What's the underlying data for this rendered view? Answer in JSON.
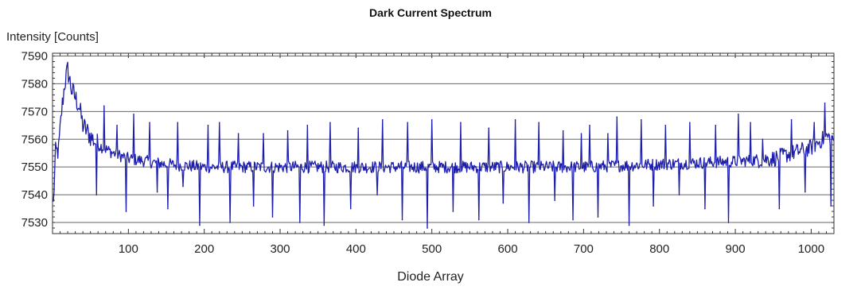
{
  "chart_data": {
    "type": "line",
    "title": "Dark Current Spectrum",
    "ylabel": "Intensity [Counts]",
    "xlabel": "Diode Array",
    "xlim": [
      0,
      1030
    ],
    "ylim": [
      7526,
      7591
    ],
    "x_ticks": [
      100,
      200,
      300,
      400,
      500,
      600,
      700,
      800,
      900,
      1000
    ],
    "y_ticks": [
      7530,
      7540,
      7550,
      7560,
      7570,
      7580,
      7590
    ],
    "grid": "horizontal",
    "colors": {
      "line": "#1d1dae",
      "grid": "#666666",
      "axis": "#333333"
    },
    "series": [
      {
        "profile": [
          [
            0,
            7530
          ],
          [
            4,
            7555
          ],
          [
            8,
            7556
          ],
          [
            12,
            7570
          ],
          [
            16,
            7580
          ],
          [
            20,
            7585
          ],
          [
            25,
            7578
          ],
          [
            30,
            7575
          ],
          [
            35,
            7572
          ],
          [
            40,
            7565
          ],
          [
            50,
            7561
          ],
          [
            60,
            7558
          ],
          [
            80,
            7555
          ],
          [
            100,
            7553
          ],
          [
            150,
            7551
          ],
          [
            200,
            7550
          ],
          [
            300,
            7550
          ],
          [
            500,
            7550
          ],
          [
            700,
            7550
          ],
          [
            800,
            7551
          ],
          [
            900,
            7552
          ],
          [
            950,
            7553
          ],
          [
            1000,
            7557
          ],
          [
            1020,
            7561
          ],
          [
            1030,
            7560
          ]
        ],
        "spikes": [
          {
            "x": 58,
            "y": 7540
          },
          {
            "x": 68,
            "y": 7572
          },
          {
            "x": 85,
            "y": 7565
          },
          {
            "x": 97,
            "y": 7534
          },
          {
            "x": 107,
            "y": 7569
          },
          {
            "x": 128,
            "y": 7566
          },
          {
            "x": 138,
            "y": 7541
          },
          {
            "x": 152,
            "y": 7535
          },
          {
            "x": 165,
            "y": 7566
          },
          {
            "x": 172,
            "y": 7543
          },
          {
            "x": 194,
            "y": 7529
          },
          {
            "x": 205,
            "y": 7565
          },
          {
            "x": 220,
            "y": 7566
          },
          {
            "x": 234,
            "y": 7530
          },
          {
            "x": 245,
            "y": 7562
          },
          {
            "x": 265,
            "y": 7536
          },
          {
            "x": 278,
            "y": 7562
          },
          {
            "x": 290,
            "y": 7532
          },
          {
            "x": 310,
            "y": 7563
          },
          {
            "x": 326,
            "y": 7530
          },
          {
            "x": 336,
            "y": 7565
          },
          {
            "x": 358,
            "y": 7529
          },
          {
            "x": 366,
            "y": 7566
          },
          {
            "x": 393,
            "y": 7535
          },
          {
            "x": 403,
            "y": 7564
          },
          {
            "x": 428,
            "y": 7540
          },
          {
            "x": 435,
            "y": 7567
          },
          {
            "x": 461,
            "y": 7531
          },
          {
            "x": 468,
            "y": 7566
          },
          {
            "x": 494,
            "y": 7528
          },
          {
            "x": 500,
            "y": 7567
          },
          {
            "x": 528,
            "y": 7534
          },
          {
            "x": 538,
            "y": 7566
          },
          {
            "x": 562,
            "y": 7531
          },
          {
            "x": 575,
            "y": 7564
          },
          {
            "x": 594,
            "y": 7537
          },
          {
            "x": 610,
            "y": 7567
          },
          {
            "x": 628,
            "y": 7530
          },
          {
            "x": 641,
            "y": 7566
          },
          {
            "x": 662,
            "y": 7538
          },
          {
            "x": 673,
            "y": 7563
          },
          {
            "x": 686,
            "y": 7531
          },
          {
            "x": 697,
            "y": 7562
          },
          {
            "x": 708,
            "y": 7565
          },
          {
            "x": 719,
            "y": 7532
          },
          {
            "x": 732,
            "y": 7562
          },
          {
            "x": 744,
            "y": 7568
          },
          {
            "x": 760,
            "y": 7529
          },
          {
            "x": 776,
            "y": 7567
          },
          {
            "x": 792,
            "y": 7536
          },
          {
            "x": 808,
            "y": 7565
          },
          {
            "x": 826,
            "y": 7540
          },
          {
            "x": 840,
            "y": 7566
          },
          {
            "x": 860,
            "y": 7535
          },
          {
            "x": 874,
            "y": 7565
          },
          {
            "x": 891,
            "y": 7530
          },
          {
            "x": 904,
            "y": 7569
          },
          {
            "x": 920,
            "y": 7566
          },
          {
            "x": 936,
            "y": 7560
          },
          {
            "x": 958,
            "y": 7535
          },
          {
            "x": 974,
            "y": 7567
          },
          {
            "x": 992,
            "y": 7541
          },
          {
            "x": 1004,
            "y": 7566
          },
          {
            "x": 1018,
            "y": 7573
          },
          {
            "x": 1026,
            "y": 7536
          }
        ]
      }
    ]
  }
}
